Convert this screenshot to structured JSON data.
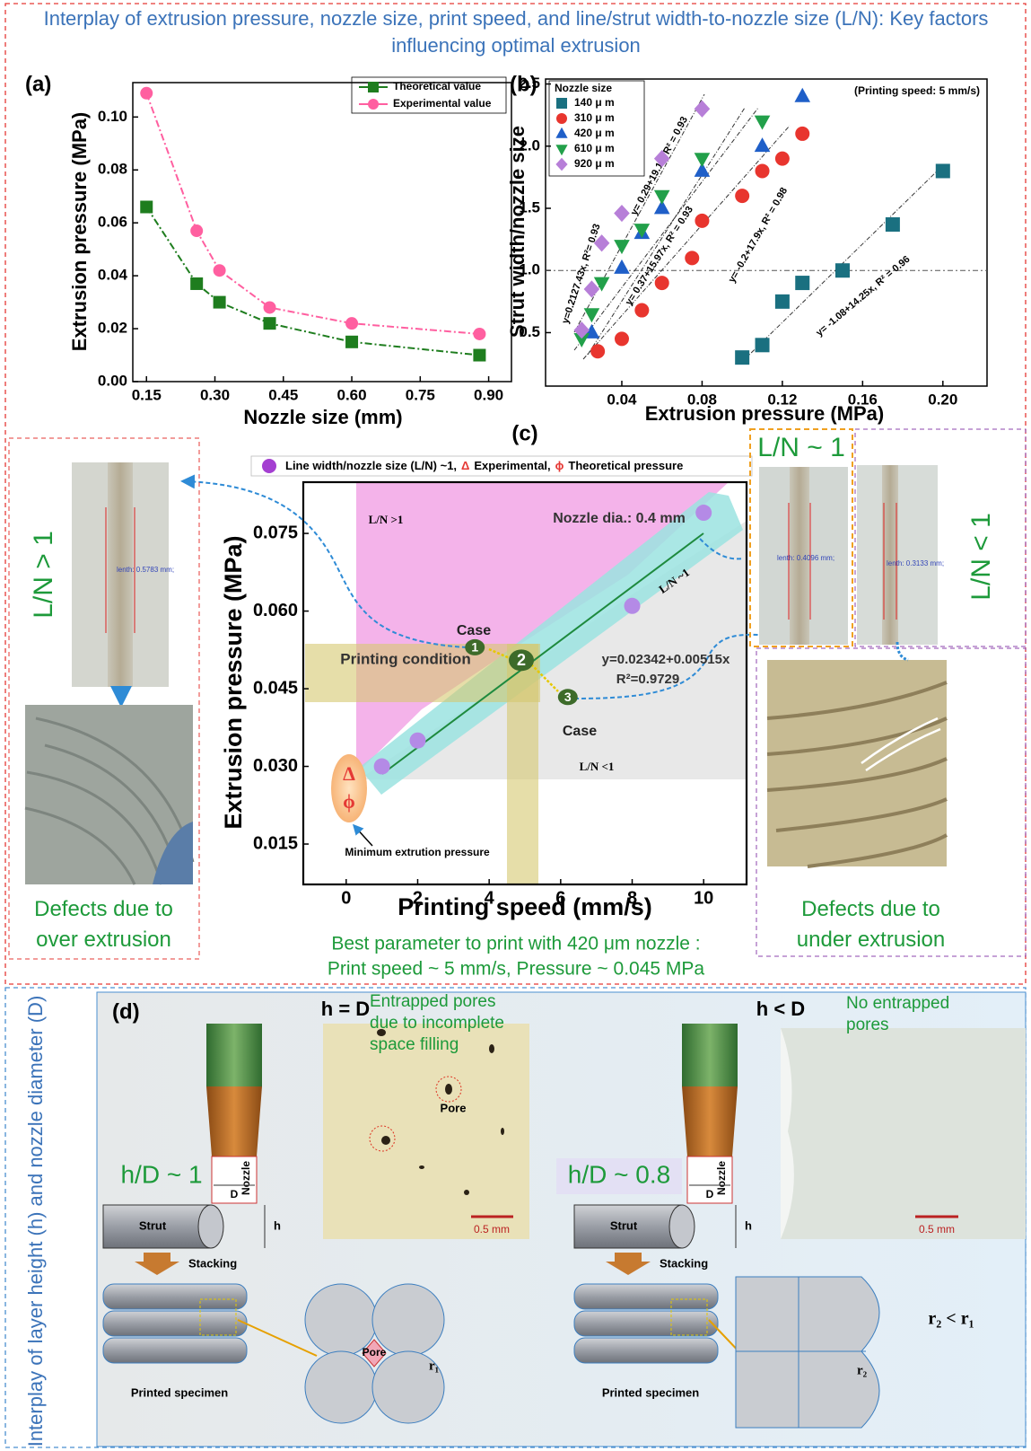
{
  "header": {
    "title": "Interplay of extrusion pressure, nozzle size, print speed, and line/strut width-to-nozzle size (L/N): Key factors influencing optimal extrusion"
  },
  "chart_data": [
    {
      "type": "line",
      "panel": "(a)",
      "x_label": "Nozzle size (mm)",
      "y_label": "Extrusion pressure (MPa)",
      "x": [
        0.15,
        0.26,
        0.31,
        0.42,
        0.6,
        0.88
      ],
      "series": [
        {
          "name": "Theoretical value",
          "color": "#1e7d1e",
          "values": [
            0.066,
            0.037,
            0.03,
            0.022,
            0.015,
            0.01
          ]
        },
        {
          "name": "Experimental value",
          "color": "#ff5fa0",
          "values": [
            0.109,
            0.057,
            0.042,
            0.028,
            0.022,
            0.018
          ]
        }
      ],
      "xlim": [
        0.12,
        0.95
      ],
      "xticks": [
        0.15,
        {
          "value": 0.3,
          "label": "0.30"
        },
        0.45,
        {
          "value": 0.6,
          "label": "0.60"
        },
        0.75,
        {
          "value": 0.9,
          "label": "0.90"
        }
      ],
      "ylim": [
        0,
        0.113
      ],
      "yticks": [
        {
          "value": 0,
          "label": "0.00"
        },
        0.02,
        0.04,
        0.06,
        0.08,
        {
          "value": 0.1,
          "label": "0.10"
        }
      ],
      "legend": "upper right"
    },
    {
      "type": "scatter",
      "panel": "(b)",
      "x_label": "Extrusion pressure (MPa)",
      "y_label": "Strut width/nozzle size",
      "legend_title": "Nozzle size",
      "annotation": "(Printing speed: 5 mm/s)",
      "fits": [
        "y=0.2127.43x, R²= 0.93",
        "y= 0.29+19.1x, R² = 0.93",
        "y= 0.37+15.97x, R² = 0.93",
        "y= -0.2+17.9x, R² = 0.98",
        "y= -1.08+14.25x, R² = 0.96"
      ],
      "hline": 1,
      "series": [
        {
          "name": "140 μ m",
          "color": "#1a7080",
          "marker": "square",
          "x": [
            0.1,
            0.11,
            0.12,
            0.13,
            0.15,
            0.175,
            0.2
          ],
          "values": [
            0.3,
            0.4,
            0.75,
            0.9,
            1.0,
            1.37,
            1.8
          ]
        },
        {
          "name": "310 μ m",
          "color": "#e8352e",
          "marker": "circle",
          "x": [
            0.028,
            0.04,
            0.05,
            0.06,
            0.075,
            0.08,
            0.1,
            0.11,
            0.12,
            0.13
          ],
          "values": [
            0.35,
            0.45,
            0.68,
            0.9,
            1.1,
            1.4,
            1.6,
            1.8,
            1.9,
            2.1
          ]
        },
        {
          "name": "420 μ m",
          "color": "#1f5fc8",
          "marker": "triangle",
          "x": [
            0.025,
            0.04,
            0.05,
            0.06,
            0.08,
            0.11,
            0.13
          ],
          "values": [
            0.5,
            1.02,
            1.3,
            1.5,
            1.8,
            2.0,
            2.4
          ]
        },
        {
          "name": "610 μ m",
          "color": "#22a04a",
          "marker": "triangle-down",
          "x": [
            0.02,
            0.025,
            0.03,
            0.04,
            0.05,
            0.06,
            0.08,
            0.11
          ],
          "values": [
            0.45,
            0.65,
            0.9,
            1.2,
            1.33,
            1.6,
            1.9,
            2.2
          ]
        },
        {
          "name": "920 μ m",
          "color": "#b77fd8",
          "marker": "diamond",
          "x": [
            0.02,
            0.025,
            0.03,
            0.04,
            0.06,
            0.08
          ],
          "values": [
            0.52,
            0.85,
            1.22,
            1.46,
            1.9,
            2.3
          ]
        }
      ],
      "xlim": [
        0.002,
        0.222
      ],
      "xticks": [
        0.04,
        0.08,
        0.12,
        0.16,
        {
          "value": 0.2,
          "label": "0.20"
        }
      ],
      "ylim": [
        0.07,
        2.54
      ],
      "yticks": [
        0.5,
        {
          "value": 1,
          "label": "1.0"
        },
        1.5,
        {
          "value": 2,
          "label": "2.0"
        },
        2.5
      ],
      "legend": "upper left"
    },
    {
      "type": "scatter",
      "panel": "(c)",
      "x_label": "Printing speed (mm/s)",
      "y_label": "Extrusion pressure (MPa)",
      "legend": [
        "Line width/nozzle size (L/N) ~1,",
        "Δ",
        "Experimental,",
        "ϕ",
        "Theoretical pressure"
      ],
      "annotations": [
        "L/N >1",
        "Nozzle dia.: 0.4 mm",
        "L/N ~1",
        "L/N <1",
        "Printing condition",
        "Case",
        "Case",
        "y=0.02342+0.00515x",
        "R²=0.9729",
        "Minimum extrution pressure",
        "Δ",
        "ϕ"
      ],
      "series": [
        {
          "color": "#b48ae6",
          "x": [
            1,
            2,
            8,
            10
          ],
          "values": [
            0.03,
            0.035,
            0.061,
            0.079
          ]
        }
      ],
      "cases": [
        {
          "label": "1",
          "x": 3.6,
          "y": 0.053
        },
        {
          "label": "2",
          "x": 4.9,
          "y": 0.0505
        },
        {
          "label": "3",
          "x": 6.2,
          "y": 0.0434
        }
      ],
      "xlim": [
        -1.2,
        11.2
      ],
      "xticks": [
        0,
        2,
        4,
        6,
        8,
        10
      ],
      "ylim": [
        0.0072,
        0.0849
      ],
      "yticks": [
        {
          "value": 0.015,
          "label": "0.015"
        },
        {
          "value": 0.03,
          "label": "0.030"
        },
        0.045,
        {
          "value": 0.06,
          "label": "0.060"
        },
        0.075
      ]
    }
  ],
  "photos": {
    "over": {
      "label": "L/N > 1",
      "length": "lenth: 0.5783 mm;",
      "caption": "Defects due to over extrusion"
    },
    "optimal": {
      "label": "L/N ~ 1",
      "length": "lenth: 0.4096 mm;"
    },
    "under": {
      "label": "L/N < 1",
      "length": "lenth: 0.3133 mm;",
      "caption": "Defects due to under extrusion"
    }
  },
  "summary": [
    "Best parameter to print with 420 μm nozzle :",
    "Print speed ~ 5 mm/s, Pressure ~ 0.045 MPa"
  ],
  "panel_d": {
    "panel": "(d)",
    "title": "Interplay of layer height (h) and nozzle diameter (D)",
    "left": {
      "condition": "h = D",
      "note": "Entrapped pores due to incomplete space filling",
      "photo_label": "Pore",
      "scale": "0.5 mm",
      "ratio": "h/D ~ 1",
      "nozzle": "Nozzle",
      "d": "D",
      "strut": "Strut",
      "h": "h",
      "stacking": "Stacking",
      "specimen": "Printed specimen",
      "pore": "Pore",
      "radius": "r₁"
    },
    "right": {
      "condition": "h < D",
      "note": "No entrapped pores",
      "scale": "0.5 mm",
      "ratio": "h/D ~ 0.8",
      "nozzle": "Nozzle",
      "d": "D",
      "strut": "Strut",
      "h": "h",
      "stacking": "Stacking",
      "specimen": "Printed specimen",
      "relation": "r₂ < r₁",
      "radius": "r₂"
    }
  }
}
